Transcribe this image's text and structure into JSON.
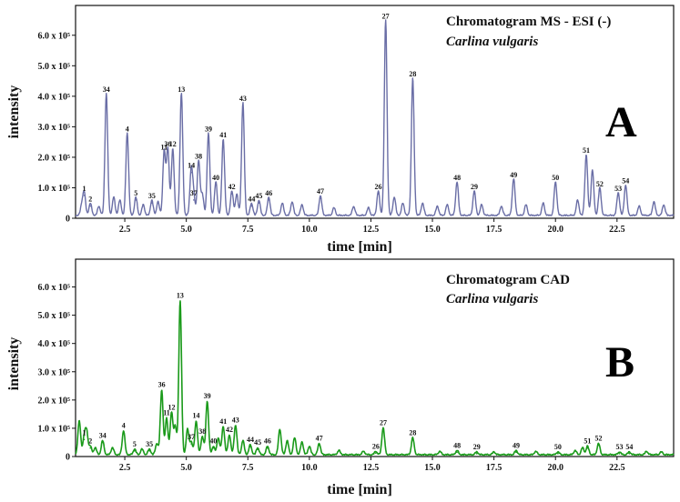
{
  "chart_data": [
    {
      "panel": "A",
      "type": "line",
      "title": "Chromatogram  MS - ESI (-)",
      "subtitle": "Carlina vulgaris",
      "xlabel": "time [min]",
      "ylabel": "intensity",
      "xlim": [
        0.5,
        24.8
      ],
      "ylim": [
        0,
        650000
      ],
      "x_ticks": [
        2.5,
        5.0,
        7.5,
        10.0,
        12.5,
        15.0,
        17.5,
        20.0,
        22.5
      ],
      "x_tick_labels": [
        "2.5",
        "5.0",
        "7.5",
        "10.0",
        "12.5",
        "15.0",
        "17.5",
        "20.0",
        "22.5"
      ],
      "y_ticks": [
        0,
        100000,
        200000,
        300000,
        400000,
        500000,
        600000
      ],
      "y_tick_labels": [
        "0",
        "1.0 x 10⁵",
        "2.0 x 10⁵",
        "3.0 x 10⁵",
        "4.0 x 10⁵",
        "5.0 x 10⁵",
        "6.0 x 10⁵"
      ],
      "color": "#6a6ea6",
      "baseline": 8000,
      "peaks": [
        {
          "label": "1",
          "x": 0.85,
          "y": 75000
        },
        {
          "label": "2",
          "x": 1.1,
          "y": 40000
        },
        {
          "label": "34",
          "x": 1.75,
          "y": 400000
        },
        {
          "label": "4",
          "x": 2.6,
          "y": 270000
        },
        {
          "label": "5",
          "x": 2.95,
          "y": 60000
        },
        {
          "label": "35",
          "x": 3.6,
          "y": 50000
        },
        {
          "label": "11",
          "x": 4.1,
          "y": 210000
        },
        {
          "label": "36",
          "x": 4.25,
          "y": 220000
        },
        {
          "label": "12",
          "x": 4.45,
          "y": 220000
        },
        {
          "label": "13",
          "x": 4.8,
          "y": 400000
        },
        {
          "label": "14",
          "x": 5.2,
          "y": 150000
        },
        {
          "label": "37",
          "x": 5.3,
          "y": 60000
        },
        {
          "label": "38",
          "x": 5.5,
          "y": 180000
        },
        {
          "label": "39",
          "x": 5.9,
          "y": 270000
        },
        {
          "label": "40",
          "x": 6.2,
          "y": 110000
        },
        {
          "label": "41",
          "x": 6.5,
          "y": 250000
        },
        {
          "label": "42",
          "x": 6.85,
          "y": 80000
        },
        {
          "label": "43",
          "x": 7.3,
          "y": 370000
        },
        {
          "label": "44",
          "x": 7.65,
          "y": 40000
        },
        {
          "label": "45",
          "x": 7.95,
          "y": 50000
        },
        {
          "label": "46",
          "x": 8.35,
          "y": 60000
        },
        {
          "label": "47",
          "x": 10.45,
          "y": 65000
        },
        {
          "label": "26",
          "x": 12.8,
          "y": 80000
        },
        {
          "label": "27",
          "x": 13.1,
          "y": 640000
        },
        {
          "label": "28",
          "x": 14.2,
          "y": 450000
        },
        {
          "label": "48",
          "x": 16.0,
          "y": 110000
        },
        {
          "label": "29",
          "x": 16.7,
          "y": 80000
        },
        {
          "label": "49",
          "x": 18.3,
          "y": 120000
        },
        {
          "label": "50",
          "x": 20.0,
          "y": 110000
        },
        {
          "label": "51",
          "x": 21.25,
          "y": 200000
        },
        {
          "label": "52",
          "x": 21.8,
          "y": 90000
        },
        {
          "label": "53",
          "x": 22.55,
          "y": 75000
        },
        {
          "label": "54",
          "x": 22.85,
          "y": 100000
        }
      ],
      "minor_peaks": [
        {
          "x": 0.75,
          "y": 30000
        },
        {
          "x": 1.45,
          "y": 30000
        },
        {
          "x": 2.05,
          "y": 60000
        },
        {
          "x": 2.3,
          "y": 50000
        },
        {
          "x": 3.25,
          "y": 35000
        },
        {
          "x": 3.85,
          "y": 45000
        },
        {
          "x": 5.65,
          "y": 70000
        },
        {
          "x": 7.05,
          "y": 70000
        },
        {
          "x": 8.9,
          "y": 40000
        },
        {
          "x": 9.3,
          "y": 45000
        },
        {
          "x": 9.7,
          "y": 35000
        },
        {
          "x": 11.0,
          "y": 25000
        },
        {
          "x": 11.8,
          "y": 30000
        },
        {
          "x": 12.4,
          "y": 25000
        },
        {
          "x": 13.45,
          "y": 60000
        },
        {
          "x": 13.8,
          "y": 40000
        },
        {
          "x": 14.6,
          "y": 40000
        },
        {
          "x": 15.2,
          "y": 30000
        },
        {
          "x": 15.6,
          "y": 35000
        },
        {
          "x": 17.0,
          "y": 35000
        },
        {
          "x": 17.8,
          "y": 30000
        },
        {
          "x": 18.8,
          "y": 35000
        },
        {
          "x": 19.5,
          "y": 40000
        },
        {
          "x": 20.9,
          "y": 50000
        },
        {
          "x": 21.5,
          "y": 150000
        },
        {
          "x": 23.4,
          "y": 30000
        },
        {
          "x": 24.0,
          "y": 45000
        },
        {
          "x": 24.4,
          "y": 35000
        }
      ]
    },
    {
      "panel": "B",
      "type": "line",
      "title": "Chromatogram CAD",
      "subtitle": "Carlina vulgaris",
      "xlabel": "time [min]",
      "ylabel": "intensity",
      "xlim": [
        0.5,
        24.8
      ],
      "ylim": [
        0,
        650000
      ],
      "x_ticks": [
        2.5,
        5.0,
        7.5,
        10.0,
        12.5,
        15.0,
        17.5,
        20.0,
        22.5
      ],
      "x_tick_labels": [
        "2.5",
        "5.0",
        "7.5",
        "10.0",
        "12.5",
        "15.0",
        "17.5",
        "20.0",
        "22.5"
      ],
      "y_ticks": [
        0,
        100000,
        200000,
        300000,
        400000,
        500000,
        600000
      ],
      "y_tick_labels": [
        "0",
        "1.0 x 10⁵",
        "2.0 x 10⁵",
        "3.0 x 10⁵",
        "4.0 x 10⁵",
        "5.0 x 10⁵",
        "6.0 x 10⁵"
      ],
      "color": "#1a9a1a",
      "baseline": 5000,
      "peaks": [
        {
          "label": "1",
          "x": 0.85,
          "y": 60000
        },
        {
          "label": "2",
          "x": 1.1,
          "y": 30000
        },
        {
          "label": "34",
          "x": 1.6,
          "y": 50000
        },
        {
          "label": "4",
          "x": 2.45,
          "y": 85000
        },
        {
          "label": "5",
          "x": 2.9,
          "y": 20000
        },
        {
          "label": "35",
          "x": 3.5,
          "y": 20000
        },
        {
          "label": "36",
          "x": 4.0,
          "y": 230000
        },
        {
          "label": "11",
          "x": 4.2,
          "y": 130000
        },
        {
          "label": "12",
          "x": 4.4,
          "y": 150000
        },
        {
          "label": "13",
          "x": 4.75,
          "y": 545000
        },
        {
          "label": "14",
          "x": 5.4,
          "y": 120000
        },
        {
          "label": "37",
          "x": 5.2,
          "y": 45000
        },
        {
          "label": "38",
          "x": 5.65,
          "y": 65000
        },
        {
          "label": "39",
          "x": 5.85,
          "y": 190000
        },
        {
          "label": "40",
          "x": 6.1,
          "y": 30000
        },
        {
          "label": "41",
          "x": 6.5,
          "y": 100000
        },
        {
          "label": "42",
          "x": 6.75,
          "y": 70000
        },
        {
          "label": "43",
          "x": 7.0,
          "y": 105000
        },
        {
          "label": "44",
          "x": 7.6,
          "y": 35000
        },
        {
          "label": "45",
          "x": 7.9,
          "y": 25000
        },
        {
          "label": "46",
          "x": 8.3,
          "y": 30000
        },
        {
          "label": "47",
          "x": 10.4,
          "y": 40000
        },
        {
          "label": "26",
          "x": 12.7,
          "y": 12000
        },
        {
          "label": "27",
          "x": 13.0,
          "y": 95000
        },
        {
          "label": "28",
          "x": 14.2,
          "y": 60000
        },
        {
          "label": "48",
          "x": 16.0,
          "y": 15000
        },
        {
          "label": "29",
          "x": 16.8,
          "y": 10000
        },
        {
          "label": "49",
          "x": 18.4,
          "y": 15000
        },
        {
          "label": "50",
          "x": 20.1,
          "y": 10000
        },
        {
          "label": "51",
          "x": 21.3,
          "y": 30000
        },
        {
          "label": "52",
          "x": 21.75,
          "y": 40000
        },
        {
          "label": "53",
          "x": 22.6,
          "y": 10000
        },
        {
          "label": "54",
          "x": 23.0,
          "y": 10000
        }
      ],
      "minor_peaks": [
        {
          "x": 0.65,
          "y": 120000
        },
        {
          "x": 0.95,
          "y": 80000
        },
        {
          "x": 1.3,
          "y": 25000
        },
        {
          "x": 2.0,
          "y": 25000
        },
        {
          "x": 3.2,
          "y": 20000
        },
        {
          "x": 3.8,
          "y": 40000
        },
        {
          "x": 4.55,
          "y": 100000
        },
        {
          "x": 5.05,
          "y": 90000
        },
        {
          "x": 6.3,
          "y": 60000
        },
        {
          "x": 7.3,
          "y": 50000
        },
        {
          "x": 8.8,
          "y": 90000
        },
        {
          "x": 9.1,
          "y": 50000
        },
        {
          "x": 9.4,
          "y": 60000
        },
        {
          "x": 9.7,
          "y": 45000
        },
        {
          "x": 10.0,
          "y": 30000
        },
        {
          "x": 11.2,
          "y": 15000
        },
        {
          "x": 12.2,
          "y": 12000
        },
        {
          "x": 15.3,
          "y": 12000
        },
        {
          "x": 17.5,
          "y": 10000
        },
        {
          "x": 19.2,
          "y": 12000
        },
        {
          "x": 20.8,
          "y": 15000
        },
        {
          "x": 21.1,
          "y": 25000
        },
        {
          "x": 23.7,
          "y": 12000
        },
        {
          "x": 24.3,
          "y": 10000
        }
      ]
    }
  ]
}
